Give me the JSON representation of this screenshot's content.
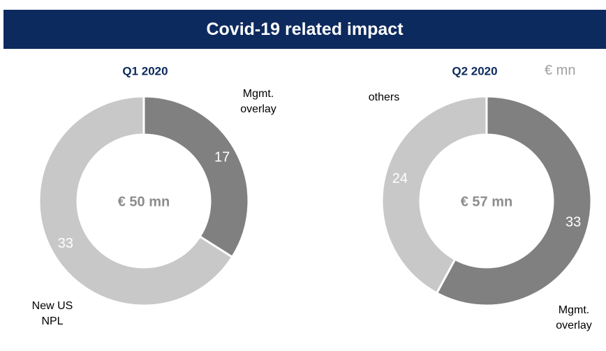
{
  "header": {
    "title": "Covid-19 related impact",
    "unit": "€ mn"
  },
  "chart_data": [
    {
      "type": "pie",
      "title": "Q1 2020",
      "center_label": "€ 50 mn",
      "categories": [
        "Mgmt. overlay",
        "New US NPL"
      ],
      "values": [
        17,
        33
      ],
      "colors": [
        "#808080",
        "#c8c8c8"
      ]
    },
    {
      "type": "pie",
      "title": "Q2 2020",
      "center_label": "€ 57 mn",
      "categories": [
        "Mgmt. overlay",
        "others"
      ],
      "values": [
        33,
        24
      ],
      "colors": [
        "#808080",
        "#c8c8c8"
      ]
    }
  ]
}
